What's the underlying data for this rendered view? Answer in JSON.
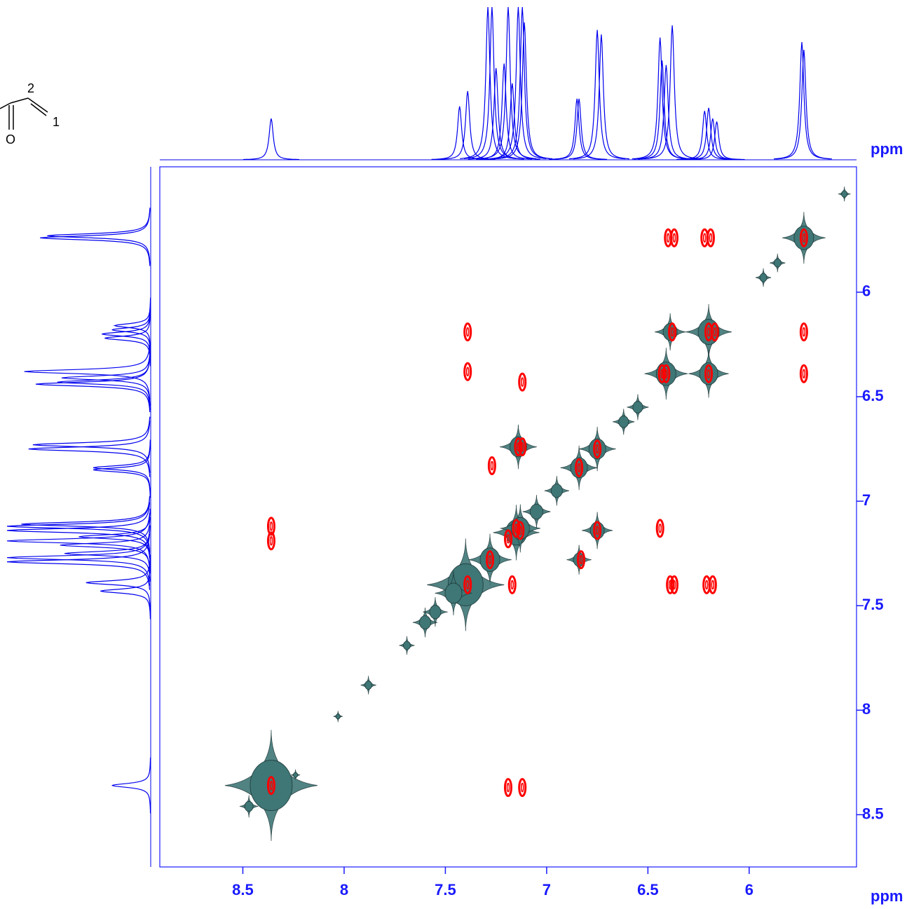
{
  "chart_data": {
    "type": "nmr2d",
    "xlabel": "ppm",
    "ylabel": "ppm",
    "structure_labels": [
      "2",
      "1",
      "O"
    ],
    "xlim": [
      8.91,
      5.47
    ],
    "ylim": [
      5.4,
      8.75
    ],
    "xticks": [
      8.5,
      8.0,
      7.5,
      7.0,
      6.5,
      6.0
    ],
    "yticks": [
      6.0,
      6.5,
      7.0,
      7.5,
      8.0,
      8.5
    ],
    "axis_color": "#1a1aff",
    "spectrum": {
      "color": "#0000ee",
      "peaks": [
        8.36,
        7.43,
        7.39,
        7.29,
        7.27,
        7.25,
        7.21,
        7.19,
        7.17,
        7.14,
        7.12,
        7.11,
        6.85,
        6.84,
        6.75,
        6.73,
        6.44,
        6.43,
        6.41,
        6.38,
        6.22,
        6.2,
        6.18,
        6.16,
        5.74,
        5.73
      ],
      "heights": [
        27,
        35,
        45,
        100,
        100,
        60,
        63,
        100,
        50,
        100,
        100,
        90,
        40,
        40,
        85,
        82,
        80,
        65,
        62,
        88,
        32,
        34,
        27,
        25,
        77,
        72
      ]
    },
    "series": [
      {
        "color": "#3f7676",
        "x": [
          5.73,
          5.53,
          5.86,
          5.93,
          6.2,
          6.39,
          6.41,
          6.2,
          6.55,
          6.62,
          6.75,
          6.84,
          6.95,
          7.05,
          7.14,
          7.15,
          7.13,
          7.28,
          7.4,
          7.46,
          7.55,
          7.6,
          7.69,
          7.88,
          8.03,
          8.24,
          8.36,
          8.47,
          6.75,
          6.84
        ],
        "y": [
          5.74,
          5.53,
          5.86,
          5.93,
          6.19,
          6.19,
          6.39,
          6.39,
          6.55,
          6.62,
          6.75,
          6.84,
          6.95,
          7.05,
          6.74,
          7.15,
          7.13,
          7.28,
          7.4,
          7.44,
          7.53,
          7.58,
          7.69,
          7.88,
          8.03,
          8.31,
          8.36,
          8.46,
          7.14,
          7.28
        ],
        "sizes": [
          1.4,
          0.4,
          0.5,
          0.5,
          1.5,
          1.0,
          1.4,
          1.3,
          0.7,
          0.7,
          1.2,
          1.2,
          0.8,
          0.9,
          1.2,
          1.5,
          1.3,
          1.4,
          2.5,
          1.2,
          0.8,
          0.8,
          0.5,
          0.5,
          0.3,
          0.3,
          3.0,
          0.6,
          1.0,
          0.8
        ]
      },
      {
        "color": "#ff0000",
        "x": [
          5.73,
          6.4,
          6.37,
          6.22,
          6.19,
          7.39,
          6.38,
          6.2,
          6.17,
          5.73,
          7.39,
          7.12,
          6.43,
          6.41,
          6.2,
          5.73,
          7.14,
          7.12,
          6.75,
          7.27,
          6.84,
          7.15,
          7.19,
          7.13,
          6.75,
          6.44,
          8.36,
          8.36,
          7.28,
          6.83,
          7.39,
          7.17,
          6.39,
          6.37,
          6.21,
          6.18,
          8.36,
          7.19,
          7.12
        ],
        "y": [
          5.74,
          5.74,
          5.74,
          5.74,
          5.74,
          6.19,
          6.19,
          6.19,
          6.19,
          6.19,
          6.38,
          6.43,
          6.39,
          6.39,
          6.39,
          6.39,
          6.74,
          6.74,
          6.75,
          6.83,
          6.84,
          7.13,
          7.18,
          7.14,
          7.14,
          7.13,
          7.12,
          7.19,
          7.28,
          7.28,
          7.4,
          7.4,
          7.4,
          7.4,
          7.4,
          7.4,
          8.36,
          8.37,
          8.37
        ]
      }
    ]
  }
}
